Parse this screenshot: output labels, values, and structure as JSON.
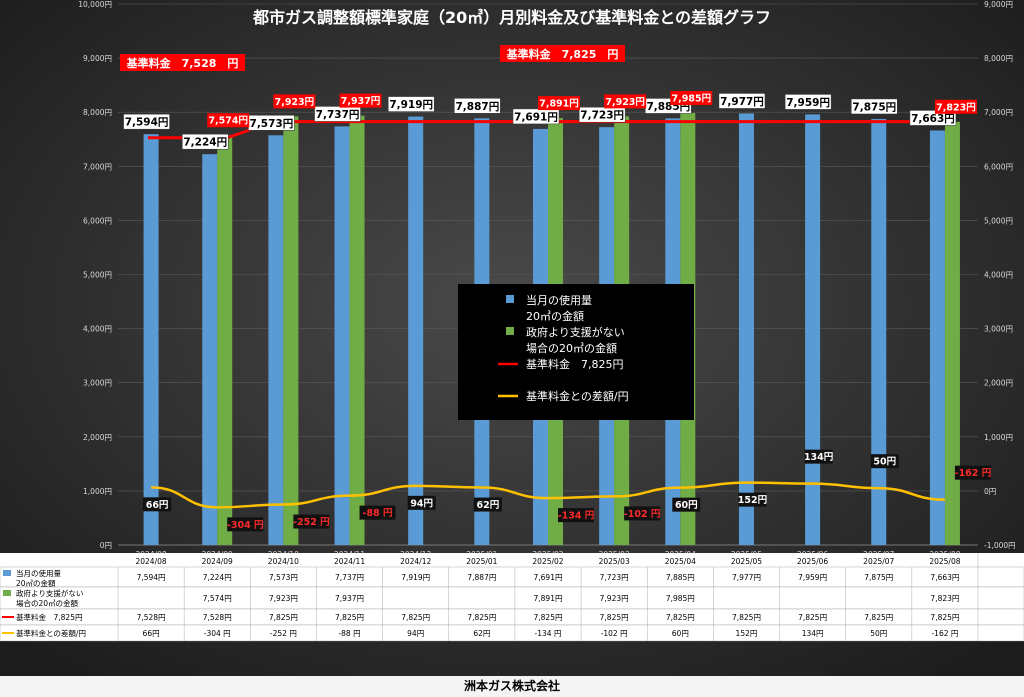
{
  "title": "都市ガス調整額標準家庭（20㎥）月別料金及び基準料金との差額グラフ",
  "company": "洲本ガス株式会社",
  "colors": {
    "blue": "#5b9bd5",
    "green": "#70ad47",
    "red": "#ff0000",
    "yellow": "#ffc000",
    "bg": "#2b2b2b"
  },
  "chart_data": {
    "type": "bar",
    "categories": [
      "2024/08",
      "2024/09",
      "2024/10",
      "2024/11",
      "2024/12",
      "2025/01",
      "2025/02",
      "2025/03",
      "2025/04",
      "2025/05",
      "2025/06",
      "2025/07",
      "2025/08"
    ],
    "left_axis_ticks": [
      "0円",
      "1,000円",
      "2,000円",
      "3,000円",
      "4,000円",
      "5,000円",
      "6,000円",
      "7,000円",
      "8,000円",
      "9,000円",
      "10,000円"
    ],
    "right_axis_ticks": [
      "-1,000円",
      "0円",
      "1,000円",
      "2,000円",
      "3,000円",
      "4,000円",
      "5,000円",
      "6,000円",
      "7,000円",
      "8,000円",
      "9,000円"
    ],
    "ylim_left": [
      0,
      10000
    ],
    "ylim_right": [
      -1000,
      9000
    ],
    "series": [
      {
        "name": "当月の使用量20㎥の金額",
        "type": "bar",
        "color": "#5b9bd5",
        "values": [
          7594,
          7224,
          7573,
          7737,
          7919,
          7887,
          7691,
          7723,
          7885,
          7977,
          7959,
          7875,
          7663
        ],
        "labels": [
          "7,594円",
          "7,224円",
          "7,573円",
          "7,737円",
          "7,919円",
          "7,887円",
          "7,691円",
          "7,723円",
          "7,885円",
          "7,977円",
          "7,959円",
          "7,875円",
          "7,663円"
        ]
      },
      {
        "name": "政府より支援がない場合の20㎥の金額",
        "type": "bar",
        "color": "#70ad47",
        "values": [
          null,
          7574,
          7923,
          7937,
          null,
          null,
          7891,
          7923,
          7985,
          null,
          null,
          null,
          7823
        ],
        "labels": [
          "",
          "7,574円",
          "7,923円",
          "7,937円",
          "",
          "",
          "7,891円",
          "7,923円",
          "7,985円",
          "",
          "",
          "",
          "7,823円"
        ]
      },
      {
        "name": "基準料金 7,825円",
        "type": "line",
        "color": "#ff0000",
        "values": [
          7528,
          7528,
          7825,
          7825,
          7825,
          7825,
          7825,
          7825,
          7825,
          7825,
          7825,
          7825,
          7825
        ],
        "labels": [
          "7,528円",
          "7,528円",
          "7,825円",
          "7,825円",
          "7,825円",
          "7,825円",
          "7,825円",
          "7,825円",
          "7,825円",
          "7,825円",
          "7,825円",
          "7,825円",
          "7,825円"
        ]
      },
      {
        "name": "基準料金との差額/円",
        "type": "line",
        "axis": "right",
        "color": "#ffc000",
        "values": [
          66,
          -304,
          -252,
          -88,
          94,
          62,
          -134,
          -102,
          60,
          152,
          134,
          50,
          -162
        ],
        "labels": [
          "66円",
          "-304 円",
          "-252 円",
          "-88 円",
          "94円",
          "62円",
          "-134 円",
          "-102 円",
          "60円",
          "152円",
          "134円",
          "50円",
          "-162 円"
        ],
        "table_labels": [
          "66円",
          "-304 円",
          "-252 円",
          "-88 円",
          "94円",
          "62円",
          "-134 円",
          "-102 円",
          "60円",
          "152円",
          "134円",
          "50円",
          "-162 円"
        ]
      }
    ],
    "legend": {
      "position": "center",
      "lines": [
        "当月の使用量",
        "20㎥の金額",
        "政府より支援がない",
        "場合の20㎥の金額",
        "基準料金　7,825円",
        "基準料金との差額/円"
      ]
    },
    "ref_labels": [
      "基準料金　7,528　円",
      "基準料金　7,825　円"
    ],
    "table": {
      "row_labels": [
        [
          "当月の使用量",
          "20㎥の金額"
        ],
        [
          "政府より支援がない",
          "場合の20㎥の金額"
        ],
        [
          "基準料金　7,825円"
        ],
        [
          "基準料金との差額/円"
        ]
      ]
    }
  }
}
